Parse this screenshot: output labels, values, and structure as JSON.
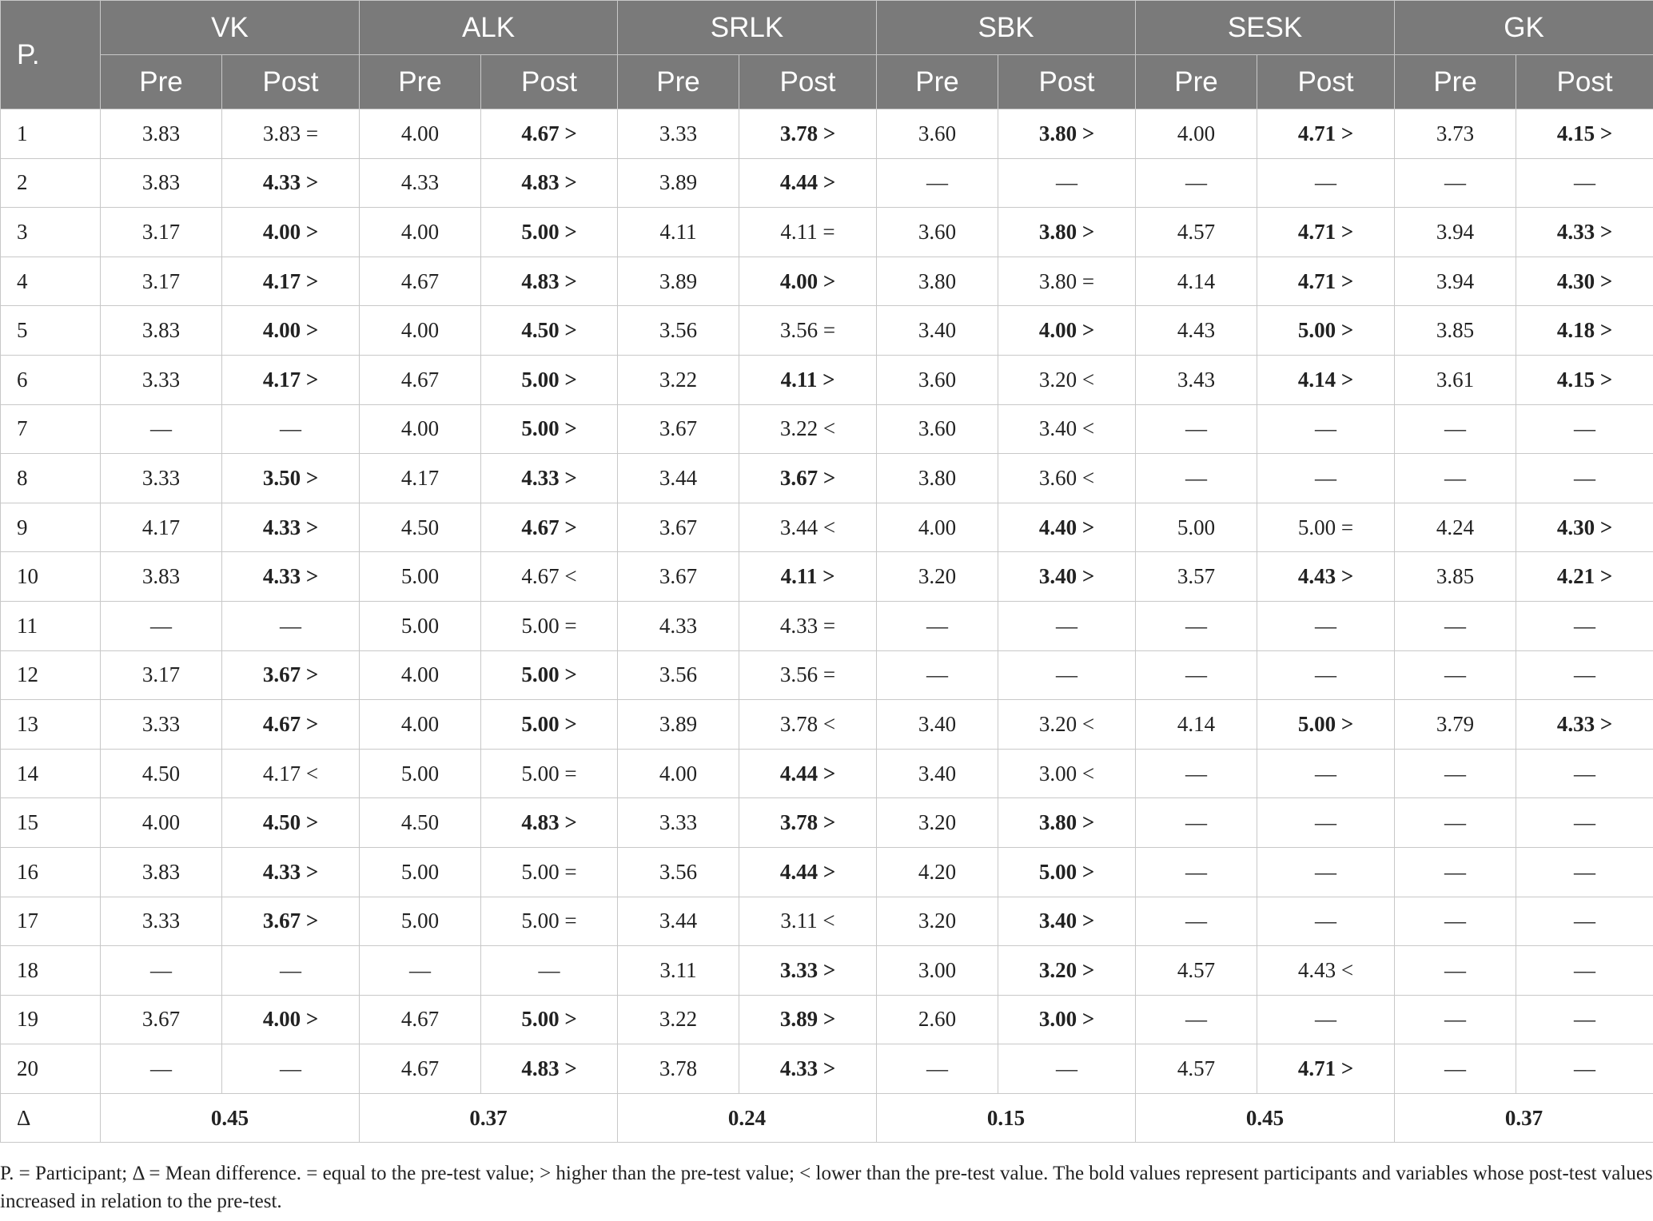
{
  "table": {
    "participant_header": "P.",
    "sub_pre": "Pre",
    "sub_post": "Post",
    "groups": [
      "VK",
      "ALK",
      "SRLK",
      "SBK",
      "SESK",
      "GK"
    ],
    "rows": [
      {
        "p": "1",
        "cells": [
          [
            "3.83",
            0
          ],
          [
            "3.83 =",
            0
          ],
          [
            "4.00",
            0
          ],
          [
            "4.67 >",
            1
          ],
          [
            "3.33",
            0
          ],
          [
            "3.78 >",
            1
          ],
          [
            "3.60",
            0
          ],
          [
            "3.80 >",
            1
          ],
          [
            "4.00",
            0
          ],
          [
            "4.71 >",
            1
          ],
          [
            "3.73",
            0
          ],
          [
            "4.15 >",
            1
          ]
        ]
      },
      {
        "p": "2",
        "cells": [
          [
            "3.83",
            0
          ],
          [
            "4.33 >",
            1
          ],
          [
            "4.33",
            0
          ],
          [
            "4.83 >",
            1
          ],
          [
            "3.89",
            0
          ],
          [
            "4.44 >",
            1
          ],
          [
            "—",
            0
          ],
          [
            "—",
            0
          ],
          [
            "—",
            0
          ],
          [
            "—",
            0
          ],
          [
            "—",
            0
          ],
          [
            "—",
            0
          ]
        ]
      },
      {
        "p": "3",
        "cells": [
          [
            "3.17",
            0
          ],
          [
            "4.00 >",
            1
          ],
          [
            "4.00",
            0
          ],
          [
            "5.00 >",
            1
          ],
          [
            "4.11",
            0
          ],
          [
            "4.11 =",
            0
          ],
          [
            "3.60",
            0
          ],
          [
            "3.80 >",
            1
          ],
          [
            "4.57",
            0
          ],
          [
            "4.71 >",
            1
          ],
          [
            "3.94",
            0
          ],
          [
            "4.33 >",
            1
          ]
        ]
      },
      {
        "p": "4",
        "cells": [
          [
            "3.17",
            0
          ],
          [
            "4.17 >",
            1
          ],
          [
            "4.67",
            0
          ],
          [
            "4.83 >",
            1
          ],
          [
            "3.89",
            0
          ],
          [
            "4.00 >",
            1
          ],
          [
            "3.80",
            0
          ],
          [
            "3.80 =",
            0
          ],
          [
            "4.14",
            0
          ],
          [
            "4.71 >",
            1
          ],
          [
            "3.94",
            0
          ],
          [
            "4.30 >",
            1
          ]
        ]
      },
      {
        "p": "5",
        "cells": [
          [
            "3.83",
            0
          ],
          [
            "4.00 >",
            1
          ],
          [
            "4.00",
            0
          ],
          [
            "4.50 >",
            1
          ],
          [
            "3.56",
            0
          ],
          [
            "3.56 =",
            0
          ],
          [
            "3.40",
            0
          ],
          [
            "4.00 >",
            1
          ],
          [
            "4.43",
            0
          ],
          [
            "5.00 >",
            1
          ],
          [
            "3.85",
            0
          ],
          [
            "4.18 >",
            1
          ]
        ]
      },
      {
        "p": "6",
        "cells": [
          [
            "3.33",
            0
          ],
          [
            "4.17 >",
            1
          ],
          [
            "4.67",
            0
          ],
          [
            "5.00 >",
            1
          ],
          [
            "3.22",
            0
          ],
          [
            "4.11 >",
            1
          ],
          [
            "3.60",
            0
          ],
          [
            "3.20 <",
            0
          ],
          [
            "3.43",
            0
          ],
          [
            "4.14 >",
            1
          ],
          [
            "3.61",
            0
          ],
          [
            "4.15 >",
            1
          ]
        ]
      },
      {
        "p": "7",
        "cells": [
          [
            "—",
            0
          ],
          [
            "—",
            0
          ],
          [
            "4.00",
            0
          ],
          [
            "5.00 >",
            1
          ],
          [
            "3.67",
            0
          ],
          [
            "3.22 <",
            0
          ],
          [
            "3.60",
            0
          ],
          [
            "3.40 <",
            0
          ],
          [
            "—",
            0
          ],
          [
            "—",
            0
          ],
          [
            "—",
            0
          ],
          [
            "—",
            0
          ]
        ]
      },
      {
        "p": "8",
        "cells": [
          [
            "3.33",
            0
          ],
          [
            "3.50 >",
            1
          ],
          [
            "4.17",
            0
          ],
          [
            "4.33 >",
            1
          ],
          [
            "3.44",
            0
          ],
          [
            "3.67 >",
            1
          ],
          [
            "3.80",
            0
          ],
          [
            "3.60 <",
            0
          ],
          [
            "—",
            0
          ],
          [
            "—",
            0
          ],
          [
            "—",
            0
          ],
          [
            "—",
            0
          ]
        ]
      },
      {
        "p": "9",
        "cells": [
          [
            "4.17",
            0
          ],
          [
            "4.33 >",
            1
          ],
          [
            "4.50",
            0
          ],
          [
            "4.67 >",
            1
          ],
          [
            "3.67",
            0
          ],
          [
            "3.44 <",
            0
          ],
          [
            "4.00",
            0
          ],
          [
            "4.40 >",
            1
          ],
          [
            "5.00",
            0
          ],
          [
            "5.00 =",
            0
          ],
          [
            "4.24",
            0
          ],
          [
            "4.30 >",
            1
          ]
        ]
      },
      {
        "p": "10",
        "cells": [
          [
            "3.83",
            0
          ],
          [
            "4.33 >",
            1
          ],
          [
            "5.00",
            0
          ],
          [
            "4.67 <",
            0
          ],
          [
            "3.67",
            0
          ],
          [
            "4.11 >",
            1
          ],
          [
            "3.20",
            0
          ],
          [
            "3.40 >",
            1
          ],
          [
            "3.57",
            0
          ],
          [
            "4.43 >",
            1
          ],
          [
            "3.85",
            0
          ],
          [
            "4.21 >",
            1
          ]
        ]
      },
      {
        "p": "11",
        "cells": [
          [
            "—",
            0
          ],
          [
            "—",
            0
          ],
          [
            "5.00",
            0
          ],
          [
            "5.00 =",
            0
          ],
          [
            "4.33",
            0
          ],
          [
            "4.33 =",
            0
          ],
          [
            "—",
            0
          ],
          [
            "—",
            0
          ],
          [
            "—",
            0
          ],
          [
            "—",
            0
          ],
          [
            "—",
            0
          ],
          [
            "—",
            0
          ]
        ]
      },
      {
        "p": "12",
        "cells": [
          [
            "3.17",
            0
          ],
          [
            "3.67 >",
            1
          ],
          [
            "4.00",
            0
          ],
          [
            "5.00 >",
            1
          ],
          [
            "3.56",
            0
          ],
          [
            "3.56 =",
            0
          ],
          [
            "—",
            0
          ],
          [
            "—",
            0
          ],
          [
            "—",
            0
          ],
          [
            "—",
            0
          ],
          [
            "—",
            0
          ],
          [
            "—",
            0
          ]
        ]
      },
      {
        "p": "13",
        "cells": [
          [
            "3.33",
            0
          ],
          [
            "4.67 >",
            1
          ],
          [
            "4.00",
            0
          ],
          [
            "5.00 >",
            1
          ],
          [
            "3.89",
            0
          ],
          [
            "3.78 <",
            0
          ],
          [
            "3.40",
            0
          ],
          [
            "3.20 <",
            0
          ],
          [
            "4.14",
            0
          ],
          [
            "5.00 >",
            1
          ],
          [
            "3.79",
            0
          ],
          [
            "4.33 >",
            1
          ]
        ]
      },
      {
        "p": "14",
        "cells": [
          [
            "4.50",
            0
          ],
          [
            "4.17 <",
            0
          ],
          [
            "5.00",
            0
          ],
          [
            "5.00 =",
            0
          ],
          [
            "4.00",
            0
          ],
          [
            "4.44 >",
            1
          ],
          [
            "3.40",
            0
          ],
          [
            "3.00 <",
            0
          ],
          [
            "—",
            0
          ],
          [
            "—",
            0
          ],
          [
            "—",
            0
          ],
          [
            "—",
            0
          ]
        ]
      },
      {
        "p": "15",
        "cells": [
          [
            "4.00",
            0
          ],
          [
            "4.50 >",
            1
          ],
          [
            "4.50",
            0
          ],
          [
            "4.83 >",
            1
          ],
          [
            "3.33",
            0
          ],
          [
            "3.78 >",
            1
          ],
          [
            "3.20",
            0
          ],
          [
            "3.80 >",
            1
          ],
          [
            "—",
            0
          ],
          [
            "—",
            0
          ],
          [
            "—",
            0
          ],
          [
            "—",
            0
          ]
        ]
      },
      {
        "p": "16",
        "cells": [
          [
            "3.83",
            0
          ],
          [
            "4.33 >",
            1
          ],
          [
            "5.00",
            0
          ],
          [
            "5.00 =",
            0
          ],
          [
            "3.56",
            0
          ],
          [
            "4.44 >",
            1
          ],
          [
            "4.20",
            0
          ],
          [
            "5.00 >",
            1
          ],
          [
            "—",
            0
          ],
          [
            "—",
            0
          ],
          [
            "—",
            0
          ],
          [
            "—",
            0
          ]
        ]
      },
      {
        "p": "17",
        "cells": [
          [
            "3.33",
            0
          ],
          [
            "3.67 >",
            1
          ],
          [
            "5.00",
            0
          ],
          [
            "5.00 =",
            0
          ],
          [
            "3.44",
            0
          ],
          [
            "3.11 <",
            0
          ],
          [
            "3.20",
            0
          ],
          [
            "3.40 >",
            1
          ],
          [
            "—",
            0
          ],
          [
            "—",
            0
          ],
          [
            "—",
            0
          ],
          [
            "—",
            0
          ]
        ]
      },
      {
        "p": "18",
        "cells": [
          [
            "—",
            0
          ],
          [
            "—",
            0
          ],
          [
            "—",
            0
          ],
          [
            "—",
            0
          ],
          [
            "3.11",
            0
          ],
          [
            "3.33 >",
            1
          ],
          [
            "3.00",
            0
          ],
          [
            "3.20 >",
            1
          ],
          [
            "4.57",
            0
          ],
          [
            "4.43 <",
            0
          ],
          [
            "—",
            0
          ],
          [
            "—",
            0
          ]
        ]
      },
      {
        "p": "19",
        "cells": [
          [
            "3.67",
            0
          ],
          [
            "4.00 >",
            1
          ],
          [
            "4.67",
            0
          ],
          [
            "5.00 >",
            1
          ],
          [
            "3.22",
            0
          ],
          [
            "3.89 >",
            1
          ],
          [
            "2.60",
            0
          ],
          [
            "3.00 >",
            1
          ],
          [
            "—",
            0
          ],
          [
            "—",
            0
          ],
          [
            "—",
            0
          ],
          [
            "—",
            0
          ]
        ]
      },
      {
        "p": "20",
        "cells": [
          [
            "—",
            0
          ],
          [
            "—",
            0
          ],
          [
            "4.67",
            0
          ],
          [
            "4.83 >",
            1
          ],
          [
            "3.78",
            0
          ],
          [
            "4.33 >",
            1
          ],
          [
            "—",
            0
          ],
          [
            "—",
            0
          ],
          [
            "4.57",
            0
          ],
          [
            "4.71 >",
            1
          ],
          [
            "—",
            0
          ],
          [
            "—",
            0
          ]
        ]
      }
    ],
    "delta": {
      "label": "Δ",
      "values": [
        "0.45",
        "0.37",
        "0.24",
        "0.15",
        "0.45",
        "0.37"
      ]
    }
  },
  "footnote": "P. = Participant; Δ = Mean difference. = equal to the pre-test value; > higher than the pre-test value; < lower than the pre-test value. The bold values represent participants and variables whose post-test values increased in relation to the pre-test."
}
